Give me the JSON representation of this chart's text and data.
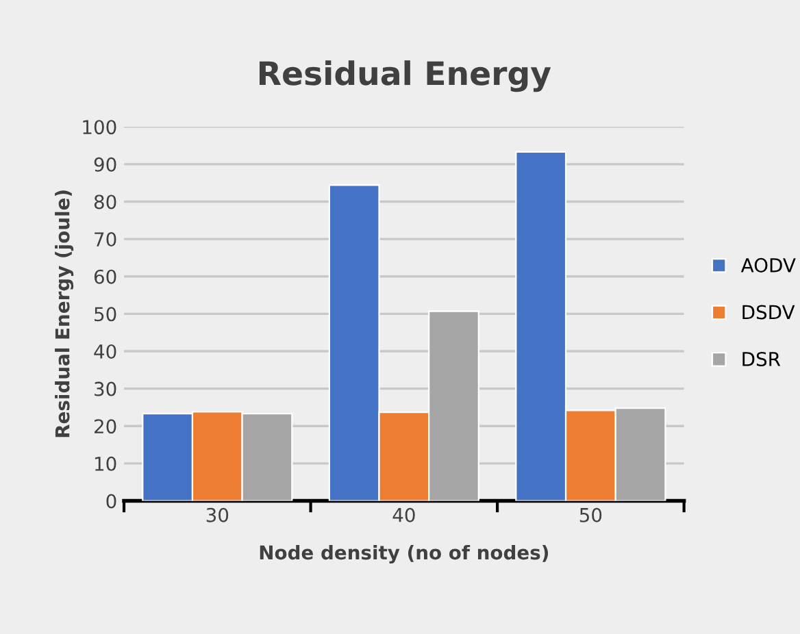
{
  "chart_data": {
    "type": "bar",
    "title": "Residual Energy",
    "xlabel": "Node density (no of nodes)",
    "ylabel": "Residual Energy (joule)",
    "categories": [
      "30",
      "40",
      "50"
    ],
    "series": [
      {
        "name": "AODV",
        "color": "#4472c4",
        "values": [
          23.3,
          84.4,
          93.3
        ]
      },
      {
        "name": "DSDV",
        "color": "#ed7d31",
        "values": [
          23.8,
          23.7,
          24.2
        ]
      },
      {
        "name": "DSR",
        "color": "#a5a5a5",
        "values": [
          23.3,
          50.7,
          24.8
        ]
      }
    ],
    "ylim": [
      0,
      100
    ],
    "yticks": [
      0,
      10,
      20,
      30,
      40,
      50,
      60,
      70,
      80,
      90,
      100
    ],
    "grid": "y",
    "legend": "right"
  }
}
